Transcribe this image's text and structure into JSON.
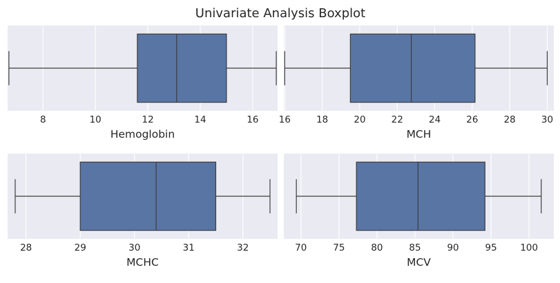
{
  "figure": {
    "title": "Univariate Analysis Boxplot",
    "background": "#ffffff",
    "axes_facecolor": "#eaeaf2",
    "box_color": "#5875a4",
    "line_color": "#3d3d3d",
    "grid_color": "#ffffff"
  },
  "chart_data": [
    {
      "type": "boxplot",
      "orientation": "horizontal",
      "xlabel": "Hemoglobin",
      "xlim": [
        6.65,
        16.95
      ],
      "xticks": [
        8,
        10,
        12,
        14,
        16
      ],
      "grid": true,
      "stats": {
        "whisker_low": 6.7,
        "q1": 11.6,
        "median": 13.1,
        "q3": 15.0,
        "whisker_high": 16.9
      }
    },
    {
      "type": "boxplot",
      "orientation": "horizontal",
      "xlabel": "MCH",
      "xlim": [
        15.95,
        30.35
      ],
      "xticks": [
        16,
        18,
        20,
        22,
        24,
        26,
        28,
        30
      ],
      "grid": true,
      "stats": {
        "whisker_low": 16.0,
        "q1": 19.5,
        "median": 22.75,
        "q3": 26.15,
        "whisker_high": 30.0
      }
    },
    {
      "type": "boxplot",
      "orientation": "horizontal",
      "xlabel": "MCHC",
      "xlim": [
        27.66,
        32.64
      ],
      "xticks": [
        28,
        29,
        30,
        31,
        32
      ],
      "grid": true,
      "stats": {
        "whisker_low": 27.8,
        "q1": 29.0,
        "median": 30.4,
        "q3": 31.5,
        "whisker_high": 32.5
      }
    },
    {
      "type": "boxplot",
      "orientation": "horizontal",
      "xlabel": "MCV",
      "xlim": [
        67.75,
        103.25
      ],
      "xticks": [
        70,
        75,
        80,
        85,
        90,
        95,
        100
      ],
      "grid": true,
      "stats": {
        "whisker_low": 69.4,
        "q1": 77.3,
        "median": 85.4,
        "q3": 94.2,
        "whisker_high": 101.6
      }
    }
  ]
}
